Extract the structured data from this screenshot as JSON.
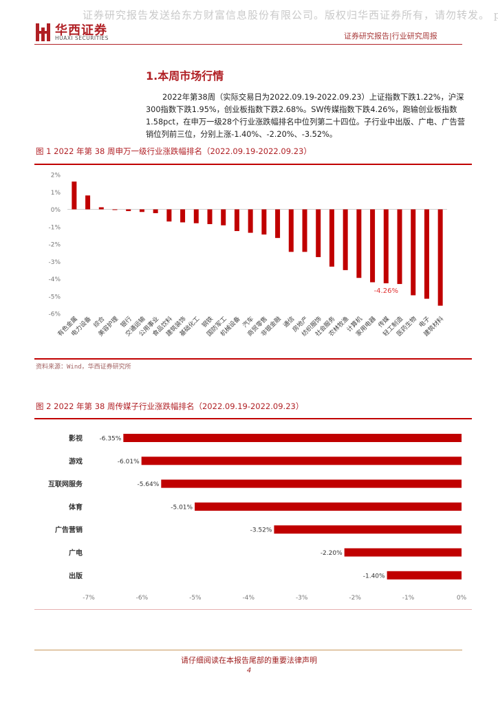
{
  "watermark": "证券研究报告发送给东方财富信息股份有限公司。版权归华西证券所有，请勿转发。 p",
  "header": {
    "logo_cn": "华西证券",
    "logo_en": "HUAXI SECURITIES",
    "right_label": "证券研究报告|行业研究周报",
    "brand_color": "#b01f24"
  },
  "section": {
    "title": "1.本周市场行情",
    "paragraph": "2022年第38周（实际交易日为2022.09.19-2022.09.23）上证指数下跌1.22%，沪深300指数下跌1.95%，创业板指数下跌2.68%。SW传媒指数下跌4.26%，跑输创业板指数1.58pct，在申万一级28个行业涨跌幅排名中位列第二十四位。子行业中出版、广电、广告营销位列前三位，分别上涨-1.40%、-2.20%、-3.52%。"
  },
  "figure1": {
    "title": "图 1  2022 年第 38 周申万一级行业涨跌幅排名（2022.09.19-2022.09.23）",
    "source": "资料来源：Wind，华西证券研究所"
  },
  "figure2": {
    "title": "图 2  2022 年第 38 周传媒子行业涨跌幅排名（2022.09.19-2022.09.23）"
  },
  "footer": {
    "legal": "请仔细阅读在本报告尾部的重要法律声明",
    "page": "4"
  },
  "chart_data": [
    {
      "type": "bar",
      "title": "2022年第38周申万一级行业涨跌幅排名",
      "categories": [
        "有色金属",
        "电力设备",
        "综合",
        "美容护理",
        "银行",
        "交通运输",
        "公用事业",
        "食品饮料",
        "建筑装饰",
        "基础化工",
        "钢铁",
        "国防军工",
        "机械设备",
        "汽车",
        "商贸零售",
        "非银金融",
        "通信",
        "房地产",
        "纺织服饰",
        "社会服务",
        "农林牧渔",
        "计算机",
        "家用电器",
        "传媒",
        "轻工制造",
        "医药生物",
        "电子",
        "建筑材料"
      ],
      "values": [
        1.6,
        0.8,
        0.12,
        -0.02,
        -0.1,
        -0.15,
        -0.22,
        -0.7,
        -0.75,
        -0.8,
        -0.85,
        -0.92,
        -1.25,
        -1.35,
        -1.45,
        -1.65,
        -2.45,
        -2.45,
        -2.75,
        -3.3,
        -3.5,
        -3.95,
        -4.2,
        -4.26,
        -4.3,
        -4.95,
        -5.15,
        -5.55
      ],
      "highlight": {
        "category": "传媒",
        "label": "-4.26%"
      },
      "ylim": [
        -6,
        2
      ],
      "yticks": [
        "2%",
        "1%",
        "0%",
        "-1%",
        "-2%",
        "-3%",
        "-4%",
        "-5%",
        "-6%"
      ],
      "color": "#c00000",
      "label_color": "#e03030"
    },
    {
      "type": "bar",
      "orientation": "horizontal",
      "title": "2022年第38周传媒子行业涨跌幅排名",
      "categories": [
        "影视",
        "游戏",
        "互联网服务",
        "体育",
        "广告营销",
        "广电",
        "出版"
      ],
      "values": [
        -6.35,
        -6.01,
        -5.64,
        -5.01,
        -3.52,
        -2.2,
        -1.4
      ],
      "data_labels": [
        "-6.35%",
        "-6.01%",
        "-5.64%",
        "-5.01%",
        "-3.52%",
        "-2.20%",
        "-1.40%"
      ],
      "xlim": [
        -7,
        0
      ],
      "xticks": [
        "-7%",
        "-6%",
        "-5%",
        "-4%",
        "-3%",
        "-2%",
        "-1%",
        "0%"
      ],
      "color": "#c00000"
    }
  ]
}
